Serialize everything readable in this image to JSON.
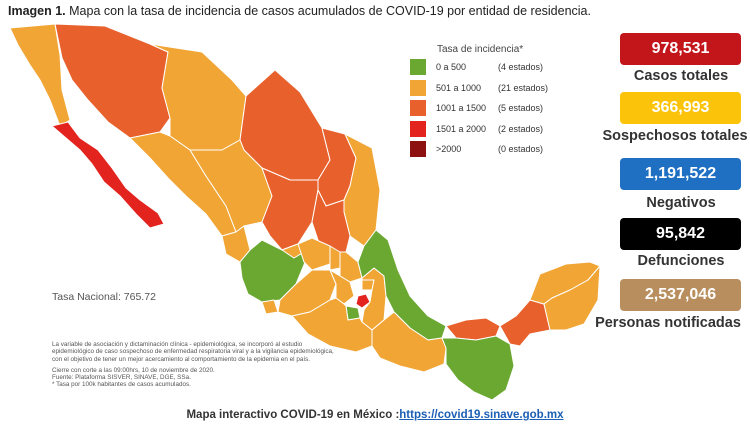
{
  "title": {
    "prefix": "Imagen 1.",
    "text": " Mapa con la tasa de incidencia de casos acumulados de COVID-19 por entidad de residencia."
  },
  "legend": {
    "title": "Tasa de incidencia*",
    "items": [
      {
        "range": "0 a   500",
        "count": "(4 estados)",
        "color": "#6aa832"
      },
      {
        "range": "501 a  1000",
        "count": "(21 estados)",
        "color": "#f0a534"
      },
      {
        "range": "1001 a  1500",
        "count": "(5 estados)",
        "color": "#e8602c"
      },
      {
        "range": "1501 a  2000",
        "count": "(2 estados)",
        "color": "#e3231e"
      },
      {
        "range": ">2000",
        "count": "(0 estados)",
        "color": "#8e1111"
      }
    ]
  },
  "national_rate": "Tasa Nacional: 765.72",
  "notes": [
    "La variable de asociación y dictaminación clínica - epidemiológica, se incorporó al estudio",
    "epidemiológico de caso sospechoso de enfermedad respiratoria viral y a la vigilancia epidemiológica,",
    "con el objetivo de tener un mejor acercamiento al comportamiento de la epidemia en el país.",
    "Cierre con corte a las 09:00hrs, 10 de noviembre de 2020.",
    "Fuente: Plataforma SISVER, SINAVE, DGE, SSa.",
    "* Tasa por 100k habitantes de casos acumulados."
  ],
  "stats": [
    {
      "value": "978,531",
      "label": "Casos totales",
      "color": "#c3161b"
    },
    {
      "value": "366,993",
      "label": "Sospechosos totales",
      "color": "#fcc30b"
    },
    {
      "value": "1,191,522",
      "label": "Negativos",
      "color": "#1f6fc2"
    },
    {
      "value": "95,842",
      "label": "Defunciones",
      "color": "#000000"
    },
    {
      "value": "2,537,046",
      "label": "Personas notificadas",
      "color": "#b88e5e"
    }
  ],
  "footer": {
    "text": "Mapa interactivo COVID-19 en México :",
    "link": "https://covid19.sinave.gob.mx"
  },
  "colors": {
    "low": "#6aa832",
    "mid": "#f0a534",
    "high": "#e8602c",
    "vhigh": "#e3231e",
    "max": "#8e1111"
  }
}
